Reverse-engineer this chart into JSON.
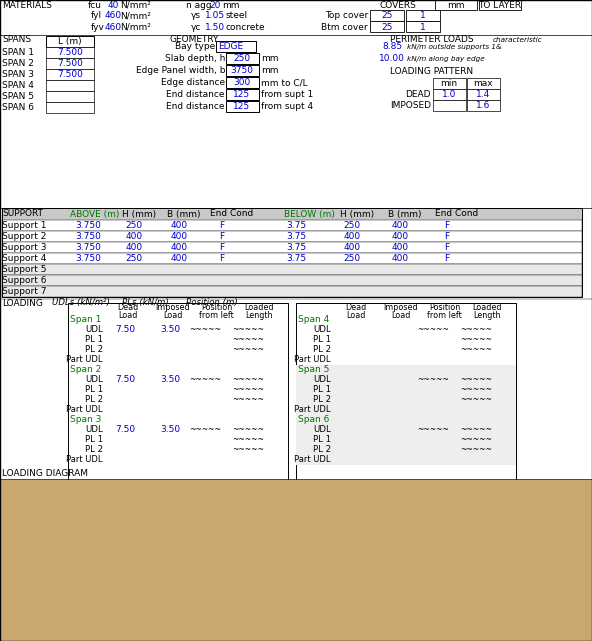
{
  "bg_color": "#ffffff",
  "blue": "#0000cc",
  "green": "#007700",
  "black": "#000000",
  "gray_header": "#c8c8c8",
  "gray_row": "#e8e8e8",
  "tan_bar": "#c8a870",
  "mat": {
    "fcu": "40",
    "fyl": "460",
    "fyv": "460",
    "hagg": "20",
    "gs": "1.05",
    "gc": "1.50",
    "top_cover": "25",
    "btm_cover": "25",
    "top_layer": "1",
    "btm_layer": "1"
  },
  "spans": [
    "7.500",
    "7.500",
    "7.500",
    "",
    "",
    ""
  ],
  "geo": {
    "bay_type": "EDGE",
    "slab_depth": "250",
    "edge_panel_w": "3750",
    "edge_dist": "300",
    "end_dist1": "125",
    "end_dist2": "125"
  },
  "perim": {
    "v1": "8.85",
    "v2": "10.00"
  },
  "lp": {
    "dead_min": "1.0",
    "dead_max": "1.4",
    "imp_max": "1.6"
  },
  "sup_rows": [
    [
      "Support 1",
      "3.750",
      "250",
      "400",
      "F",
      "3.75",
      "250",
      "400",
      "F"
    ],
    [
      "Support 2",
      "3.750",
      "400",
      "400",
      "F",
      "3.75",
      "400",
      "400",
      "F"
    ],
    [
      "Support 3",
      "3.750",
      "400",
      "400",
      "F",
      "3.75",
      "400",
      "400",
      "F"
    ],
    [
      "Support 4",
      "3.750",
      "250",
      "400",
      "F",
      "3.75",
      "250",
      "400",
      "F"
    ],
    [
      "Support 5",
      "",
      "",
      "",
      "",
      "",
      "",
      "",
      ""
    ],
    [
      "Support 6",
      "",
      "",
      "",
      "",
      "",
      "",
      "",
      ""
    ],
    [
      "Support 7",
      "",
      "",
      "",
      "",
      "",
      "",
      "",
      ""
    ]
  ],
  "load_left": [
    {
      "label": "Span 1",
      "udl": [
        "7.50",
        "3.50"
      ],
      "pl1": [],
      "pl2": [],
      "pudl": []
    },
    {
      "label": "Span 2",
      "udl": [
        "7.50",
        "3.50"
      ],
      "pl1": [],
      "pl2": [],
      "pudl": []
    },
    {
      "label": "Span 3",
      "udl": [
        "7.50",
        "3.50"
      ],
      "pl1": [],
      "pl2": [],
      "pudl": []
    }
  ],
  "load_right": [
    {
      "label": "Span 4",
      "udl": [],
      "pl1": [],
      "pl2": [],
      "pudl": []
    },
    {
      "label": "Span 5",
      "udl": [],
      "pl1": [],
      "pl2": [],
      "pudl": []
    },
    {
      "label": "Span 6",
      "udl": [],
      "pl1": [],
      "pl2": [],
      "pudl": []
    }
  ]
}
